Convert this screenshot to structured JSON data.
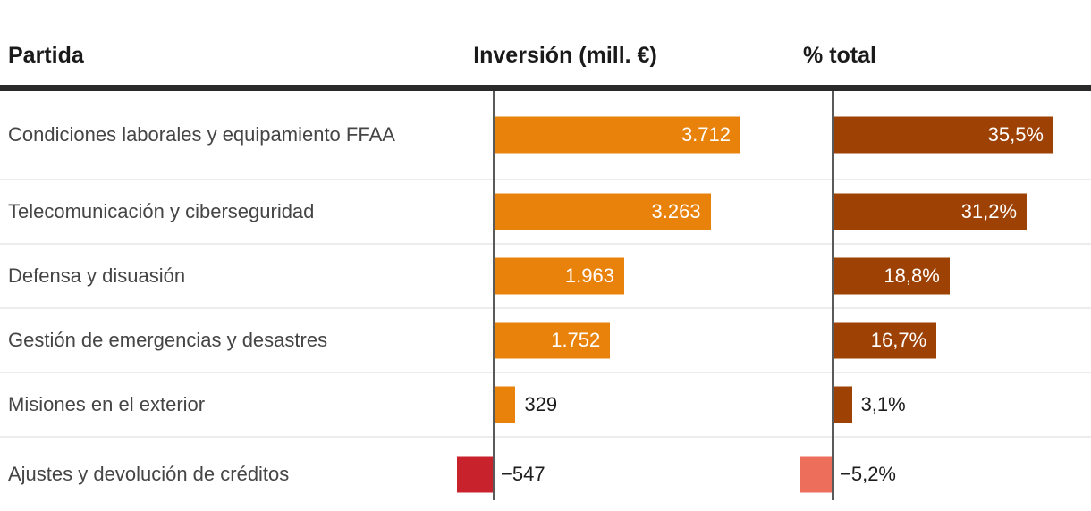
{
  "header": {
    "partida": "Partida",
    "inversion": "Inversión (mill. €)",
    "total": "% total"
  },
  "chart_data": {
    "type": "bar",
    "orientation": "horizontal",
    "columns": [
      "Partida",
      "Inversión (mill. €)",
      "% total"
    ],
    "rows": [
      {
        "label": "Condiciones laborales y equipamiento FFAA",
        "inversion": 3712,
        "inversion_label": "3.712",
        "pct": 35.5,
        "pct_label": "35,5%"
      },
      {
        "label": "Telecomunicación y ciberseguridad",
        "inversion": 3263,
        "inversion_label": "3.263",
        "pct": 31.2,
        "pct_label": "31,2%"
      },
      {
        "label": "Defensa y disuasión",
        "inversion": 1963,
        "inversion_label": "1.963",
        "pct": 18.8,
        "pct_label": "18,8%"
      },
      {
        "label": "Gestión de emergencias y desastres",
        "inversion": 1752,
        "inversion_label": "1.752",
        "pct": 16.7,
        "pct_label": "16,7%"
      },
      {
        "label": "Misiones en el exterior",
        "inversion": 329,
        "inversion_label": "329",
        "pct": 3.1,
        "pct_label": "3,1%"
      },
      {
        "label": "Ajustes y devolución de créditos",
        "inversion": -547,
        "inversion_label": "−547",
        "pct": -5.2,
        "pct_label": "−5,2%"
      }
    ],
    "colors": {
      "investment_positive": "#E8820B",
      "investment_negative": "#C8232C",
      "pct_positive": "#9E4104",
      "pct_negative": "#EE6E5C",
      "axis_line": "#5a5a5a",
      "header_rule": "#2a2a2a",
      "row_separator": "#ececec",
      "label_text": "#454545",
      "header_text": "#1a1a1a",
      "value_text_outside": "#1d1d1d",
      "value_text_inside": "#ffffff"
    },
    "legend_position": "none",
    "grid": "row-separators-and-zero-axes"
  }
}
